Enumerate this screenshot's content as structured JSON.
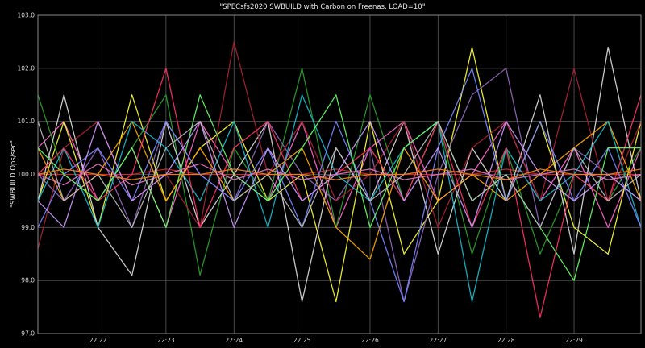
{
  "chart_data": {
    "type": "line",
    "title": "\"SPECsfs2020 SWBUILD with Carbon on Freenas. LOAD=10\"",
    "xlabel": "",
    "ylabel": "\"SWBUILD Ops/sec\"",
    "ylim": [
      97.0,
      103.0
    ],
    "yticks": [
      "97.0",
      "98.0",
      "99.0",
      "100.0",
      "101.0",
      "102.0",
      "103.0"
    ],
    "xlim": [
      "22:21:07",
      "22:29:59"
    ],
    "xticks": [
      "22:22",
      "22:23",
      "22:24",
      "22:25",
      "22:26",
      "22:27",
      "22:28",
      "22:29"
    ],
    "grid": true,
    "background": "#000000",
    "grid_color": "#5a5a5a",
    "series": [
      {
        "color": "#d62728",
        "x": [
          "22:21:07",
          "22:21:30",
          "22:22:00",
          "22:22:30",
          "22:23:00",
          "22:23:30",
          "22:24:00",
          "22:24:30",
          "22:25:00",
          "22:25:30",
          "22:26:00",
          "22:26:30",
          "22:27:00",
          "22:27:30",
          "22:28:00",
          "22:28:30",
          "22:29:00",
          "22:29:30",
          "22:29:59"
        ],
        "values": [
          100.0,
          100.0,
          100.0,
          100.0,
          100.1,
          100.0,
          100.0,
          100.0,
          100.0,
          100.1,
          100.0,
          100.0,
          100.0,
          100.0,
          100.1,
          100.0,
          100.0,
          100.0,
          100.0
        ]
      },
      {
        "color": "#ff66cc",
        "x": [
          "22:21:07",
          "22:21:30",
          "22:22:00",
          "22:22:30",
          "22:23:00",
          "22:23:30",
          "22:24:00",
          "22:24:30",
          "22:25:00",
          "22:25:30",
          "22:26:00",
          "22:26:30",
          "22:27:00",
          "22:27:30",
          "22:28:00",
          "22:28:30",
          "22:29:00",
          "22:29:30",
          "22:29:59"
        ],
        "values": [
          100.5,
          101.0,
          99.5,
          100.5,
          99.0,
          101.0,
          100.0,
          99.5,
          101.0,
          99.0,
          100.5,
          101.0,
          99.5,
          100.0,
          101.0,
          99.5,
          100.5,
          99.0,
          100.5
        ]
      },
      {
        "color": "#ffff33",
        "x": [
          "22:21:07",
          "22:21:30",
          "22:22:00",
          "22:22:30",
          "22:23:00",
          "22:23:30",
          "22:24:00",
          "22:24:30",
          "22:25:00",
          "22:25:30",
          "22:26:00",
          "22:26:30",
          "22:27:00",
          "22:27:30",
          "22:28:00",
          "22:28:30",
          "22:29:00",
          "22:29:30",
          "22:29:59"
        ],
        "values": [
          99.5,
          101.0,
          99.0,
          101.5,
          99.5,
          100.5,
          101.0,
          99.5,
          100.0,
          97.6,
          101.0,
          98.5,
          99.5,
          102.4,
          99.5,
          101.0,
          99.0,
          98.5,
          101.0
        ]
      },
      {
        "color": "#2ca02c",
        "x": [
          "22:21:07",
          "22:21:30",
          "22:22:00",
          "22:22:30",
          "22:23:00",
          "22:23:30",
          "22:24:00",
          "22:24:30",
          "22:25:00",
          "22:25:30",
          "22:26:00",
          "22:26:30",
          "22:27:00",
          "22:27:30",
          "22:28:00",
          "22:28:30",
          "22:29:00",
          "22:29:30",
          "22:29:59"
        ],
        "values": [
          101.5,
          100.0,
          99.5,
          100.5,
          101.5,
          98.1,
          100.5,
          99.5,
          102.0,
          99.0,
          101.5,
          99.5,
          101.0,
          98.5,
          100.5,
          98.5,
          100.0,
          99.5,
          100.5
        ]
      },
      {
        "color": "#dddddd",
        "x": [
          "22:21:07",
          "22:21:30",
          "22:22:00",
          "22:22:30",
          "22:23:00",
          "22:23:30",
          "22:24:00",
          "22:24:30",
          "22:25:00",
          "22:25:30",
          "22:26:00",
          "22:26:30",
          "22:27:00",
          "22:27:30",
          "22:28:00",
          "22:28:30",
          "22:29:00",
          "22:29:30",
          "22:29:59"
        ],
        "values": [
          99.5,
          101.5,
          99.0,
          98.1,
          101.0,
          99.0,
          100.0,
          101.0,
          97.6,
          100.5,
          99.5,
          101.0,
          98.5,
          100.5,
          99.5,
          101.5,
          98.5,
          102.4,
          99.5
        ]
      },
      {
        "color": "#9467bd",
        "x": [
          "22:21:07",
          "22:21:30",
          "22:22:00",
          "22:22:30",
          "22:23:00",
          "22:23:30",
          "22:24:00",
          "22:24:30",
          "22:25:00",
          "22:25:30",
          "22:26:00",
          "22:26:30",
          "22:27:00",
          "22:27:30",
          "22:28:00",
          "22:28:30",
          "22:29:00",
          "22:29:30",
          "22:29:59"
        ],
        "values": [
          100.0,
          99.5,
          100.5,
          99.0,
          101.0,
          100.0,
          99.5,
          101.0,
          100.0,
          99.5,
          100.5,
          97.6,
          100.0,
          101.5,
          102.0,
          99.0,
          100.5,
          100.0,
          99.5
        ]
      },
      {
        "color": "#aa2233",
        "x": [
          "22:21:07",
          "22:21:30",
          "22:22:00",
          "22:22:30",
          "22:23:00",
          "22:23:30",
          "22:24:00",
          "22:24:30",
          "22:25:00",
          "22:25:30",
          "22:26:00",
          "22:26:30",
          "22:27:00",
          "22:27:30",
          "22:28:00",
          "22:28:30",
          "22:29:00",
          "22:29:30",
          "22:29:59"
        ],
        "values": [
          98.6,
          100.5,
          101.0,
          99.5,
          100.0,
          99.0,
          102.5,
          100.0,
          101.0,
          99.5,
          100.0,
          101.0,
          99.0,
          100.5,
          101.0,
          99.5,
          102.0,
          99.5,
          101.0
        ]
      },
      {
        "color": "#ffaa00",
        "x": [
          "22:21:07",
          "22:21:30",
          "22:22:00",
          "22:22:30",
          "22:23:00",
          "22:23:30",
          "22:24:00",
          "22:24:30",
          "22:25:00",
          "22:25:30",
          "22:26:00",
          "22:26:30",
          "22:27:00",
          "22:27:30",
          "22:28:00",
          "22:28:30",
          "22:29:00",
          "22:29:30",
          "22:29:59"
        ],
        "values": [
          100.5,
          99.5,
          100.0,
          101.0,
          99.5,
          100.5,
          99.5,
          100.0,
          100.5,
          99.0,
          98.4,
          100.5,
          99.5,
          100.0,
          99.5,
          100.0,
          100.5,
          101.0,
          99.5
        ]
      },
      {
        "color": "#17becf",
        "x": [
          "22:21:07",
          "22:21:30",
          "22:22:00",
          "22:22:30",
          "22:23:00",
          "22:23:30",
          "22:24:00",
          "22:24:30",
          "22:25:00",
          "22:25:30",
          "22:26:00",
          "22:26:30",
          "22:27:00",
          "22:27:30",
          "22:28:00",
          "22:28:30",
          "22:29:00",
          "22:29:30",
          "22:29:59"
        ],
        "values": [
          99.5,
          100.5,
          99.0,
          101.0,
          100.5,
          99.5,
          101.0,
          99.0,
          101.5,
          100.0,
          99.5,
          100.5,
          101.0,
          97.6,
          100.5,
          99.5,
          100.0,
          101.0,
          99.0
        ]
      },
      {
        "color": "#ff3366",
        "x": [
          "22:21:07",
          "22:21:30",
          "22:22:00",
          "22:22:30",
          "22:23:00",
          "22:23:30",
          "22:24:00",
          "22:24:30",
          "22:25:00",
          "22:25:30",
          "22:26:00",
          "22:26:30",
          "22:27:00",
          "22:27:30",
          "22:28:00",
          "22:28:30",
          "22:29:00",
          "22:29:30",
          "22:29:59"
        ],
        "values": [
          100.0,
          100.5,
          99.5,
          100.0,
          102.0,
          99.0,
          100.5,
          101.0,
          99.5,
          100.0,
          100.5,
          99.5,
          101.0,
          99.0,
          100.5,
          97.3,
          100.0,
          99.5,
          101.5
        ]
      },
      {
        "color": "#7788ff",
        "x": [
          "22:21:07",
          "22:21:30",
          "22:22:00",
          "22:22:30",
          "22:23:00",
          "22:23:30",
          "22:24:00",
          "22:24:30",
          "22:25:00",
          "22:25:30",
          "22:26:00",
          "22:26:30",
          "22:27:00",
          "22:27:30",
          "22:28:00",
          "22:28:30",
          "22:29:00",
          "22:29:30",
          "22:29:59"
        ],
        "values": [
          99.0,
          100.0,
          100.5,
          99.5,
          101.0,
          100.0,
          99.5,
          100.5,
          99.0,
          101.0,
          99.5,
          97.6,
          100.5,
          102.0,
          99.5,
          101.0,
          99.5,
          100.5,
          99.0
        ]
      },
      {
        "color": "#66ff66",
        "x": [
          "22:21:07",
          "22:21:30",
          "22:22:00",
          "22:22:30",
          "22:23:00",
          "22:23:30",
          "22:24:00",
          "22:24:30",
          "22:25:00",
          "22:25:30",
          "22:26:00",
          "22:26:30",
          "22:27:00",
          "22:27:30",
          "22:28:00",
          "22:28:30",
          "22:29:00",
          "22:29:30",
          "22:29:59"
        ],
        "values": [
          100.5,
          100.0,
          99.5,
          100.5,
          99.0,
          101.5,
          100.0,
          99.5,
          100.5,
          101.5,
          99.0,
          100.5,
          101.0,
          99.5,
          100.0,
          99.0,
          98.0,
          100.5,
          100.5
        ]
      },
      {
        "color": "#cc99ff",
        "x": [
          "22:21:07",
          "22:21:30",
          "22:22:00",
          "22:22:30",
          "22:23:00",
          "22:23:30",
          "22:24:00",
          "22:24:30",
          "22:25:00",
          "22:25:30",
          "22:26:00",
          "22:26:30",
          "22:27:00",
          "22:27:30",
          "22:28:00",
          "22:28:30",
          "22:29:00",
          "22:29:30",
          "22:29:59"
        ],
        "values": [
          99.5,
          99.0,
          101.0,
          99.5,
          100.0,
          101.0,
          99.0,
          100.5,
          99.5,
          100.0,
          101.0,
          99.5,
          100.5,
          99.0,
          101.0,
          100.0,
          99.5,
          100.0,
          99.5
        ]
      },
      {
        "color": "#e377c2",
        "x": [
          "22:21:07",
          "22:21:30",
          "22:22:00",
          "22:22:30",
          "22:23:00",
          "22:23:30",
          "22:24:00",
          "22:24:30",
          "22:25:00",
          "22:25:30",
          "22:26:00",
          "22:26:30",
          "22:27:00",
          "22:27:30",
          "22:28:00",
          "22:28:30",
          "22:29:00",
          "22:29:30",
          "22:29:59"
        ],
        "values": [
          100.0,
          99.8,
          100.2,
          99.8,
          100.0,
          100.2,
          99.9,
          100.1,
          99.9,
          100.0,
          100.1,
          99.9,
          100.0,
          100.1,
          99.9,
          100.0,
          100.1,
          99.9,
          100.0
        ]
      },
      {
        "color": "#bbbbbb",
        "x": [
          "22:21:07",
          "22:21:30",
          "22:22:00",
          "22:22:30",
          "22:23:00",
          "22:23:30",
          "22:24:00",
          "22:24:30",
          "22:25:00",
          "22:25:30",
          "22:26:00",
          "22:26:30",
          "22:27:00",
          "22:27:30",
          "22:28:00",
          "22:28:30",
          "22:29:00",
          "22:29:30",
          "22:29:59"
        ],
        "values": [
          101.0,
          99.5,
          100.0,
          99.0,
          100.5,
          101.0,
          99.5,
          100.0,
          99.0,
          100.5,
          99.5,
          100.0,
          101.0,
          99.5,
          100.0,
          99.0,
          100.5,
          99.5,
          100.0
        ]
      },
      {
        "color": "#ff7f0e",
        "x": [
          "22:21:07",
          "22:21:30",
          "22:22:00",
          "22:22:30",
          "22:23:00",
          "22:23:30",
          "22:24:00",
          "22:24:30",
          "22:25:00",
          "22:25:30",
          "22:26:00",
          "22:26:30",
          "22:27:00",
          "22:27:30",
          "22:28:00",
          "22:28:30",
          "22:29:00",
          "22:29:30",
          "22:29:59"
        ],
        "values": [
          100.0,
          100.1,
          100.0,
          99.9,
          100.0,
          100.0,
          100.1,
          100.0,
          100.0,
          99.9,
          100.0,
          100.0,
          100.1,
          100.0,
          99.9,
          100.1,
          100.0,
          100.0,
          100.1
        ]
      }
    ]
  }
}
